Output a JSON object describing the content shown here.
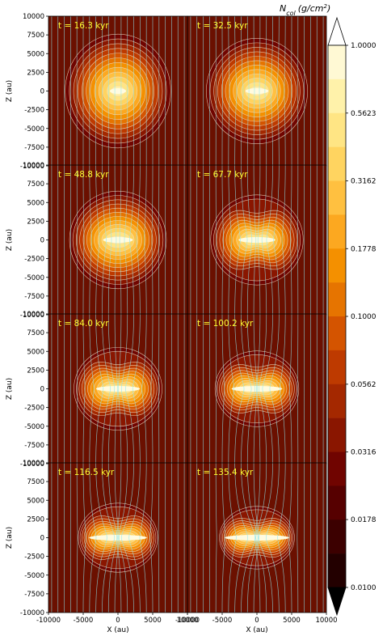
{
  "chart_data": {
    "type": "heatmap",
    "layout": "4 rows x 2 columns of panels sharing axes",
    "xlabel": "X (au)",
    "ylabel": "Z (au)",
    "xlim": [
      -10000,
      10000
    ],
    "ylim": [
      -10000,
      10000
    ],
    "xticks": [
      "-10000",
      "-5000",
      "0",
      "5000",
      "10000"
    ],
    "yticks": [
      "10000",
      "7500",
      "5000",
      "2500",
      "0",
      "-2500",
      "-5000",
      "-7500",
      "-10000"
    ],
    "panels": [
      {
        "time_label": "t = 16.3 kyr",
        "time_kyr": 16.3
      },
      {
        "time_label": "t = 32.5 kyr",
        "time_kyr": 32.5
      },
      {
        "time_label": "t = 48.8 kyr",
        "time_kyr": 48.8
      },
      {
        "time_label": "t = 67.7 kyr",
        "time_kyr": 67.7
      },
      {
        "time_label": "t = 84.0 kyr",
        "time_kyr": 84.0
      },
      {
        "time_label": "t = 100.2 kyr",
        "time_kyr": 100.2
      },
      {
        "time_label": "t = 116.5 kyr",
        "time_kyr": 116.5
      },
      {
        "time_label": "t = 135.4 kyr",
        "time_kyr": 135.4
      }
    ],
    "colorbar": {
      "title": "N_col (g/cm^2)",
      "scale": "log",
      "range": [
        0.01,
        1.0
      ],
      "extend": "both",
      "tick_labels": [
        "1.0000",
        "0.5623",
        "0.3162",
        "0.1778",
        "0.1000",
        "0.0562",
        "0.0316",
        "0.0178",
        "0.0100"
      ],
      "colors": [
        "#000000",
        "#230000",
        "#3c0000",
        "#560000",
        "#700400",
        "#8a1600",
        "#a42800",
        "#be3a00",
        "#d45400",
        "#e67400",
        "#f49000",
        "#fca820",
        "#ffc040",
        "#ffd460",
        "#ffe584",
        "#fff2aa",
        "#fff9d4",
        "#ffffff"
      ]
    },
    "overlays": [
      "density contours (light)",
      "magnetic field lines (cyan)"
    ]
  }
}
